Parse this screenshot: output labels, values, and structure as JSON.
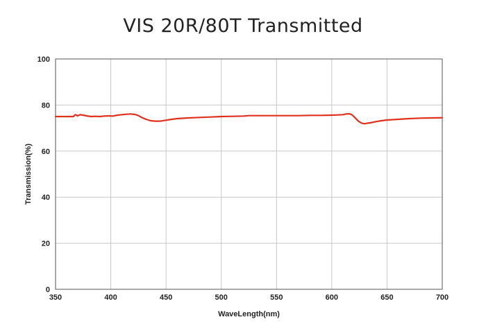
{
  "chart_data": {
    "type": "line",
    "title": "VIS 20R/80T Transmitted",
    "xlabel": "WaveLength(nm)",
    "ylabel": "Transmission(%)",
    "xlim": [
      350,
      700
    ],
    "ylim": [
      0,
      100
    ],
    "xticks": [
      350,
      400,
      450,
      500,
      550,
      600,
      650,
      700
    ],
    "yticks": [
      0,
      20,
      40,
      60,
      80,
      100
    ],
    "grid": true,
    "series": [
      {
        "color": "#e0301e",
        "x": [
          350,
          358,
          366,
          368,
          370,
          372,
          375,
          378,
          382,
          386,
          390,
          394,
          398,
          402,
          406,
          410,
          414,
          418,
          422,
          425,
          428,
          432,
          436,
          440,
          445,
          450,
          455,
          460,
          470,
          480,
          490,
          500,
          510,
          520,
          525,
          530,
          540,
          550,
          560,
          570,
          580,
          590,
          600,
          605,
          610,
          613,
          616,
          618,
          620,
          622,
          624,
          626,
          628,
          630,
          632,
          635,
          640,
          645,
          650,
          660,
          670,
          680,
          690,
          700
        ],
        "y": [
          75.0,
          75.0,
          75.0,
          75.8,
          75.3,
          75.8,
          75.6,
          75.3,
          75.0,
          75.1,
          75.0,
          75.2,
          75.3,
          75.2,
          75.6,
          75.8,
          76.0,
          76.1,
          75.9,
          75.4,
          74.6,
          73.8,
          73.2,
          73.0,
          73.0,
          73.4,
          73.8,
          74.1,
          74.4,
          74.6,
          74.8,
          75.0,
          75.1,
          75.2,
          75.4,
          75.4,
          75.4,
          75.4,
          75.4,
          75.4,
          75.5,
          75.5,
          75.6,
          75.7,
          75.8,
          76.1,
          76.2,
          75.8,
          75.0,
          74.0,
          73.0,
          72.4,
          72.0,
          71.9,
          72.1,
          72.3,
          72.8,
          73.2,
          73.5,
          73.8,
          74.1,
          74.3,
          74.4,
          74.5
        ]
      }
    ]
  }
}
